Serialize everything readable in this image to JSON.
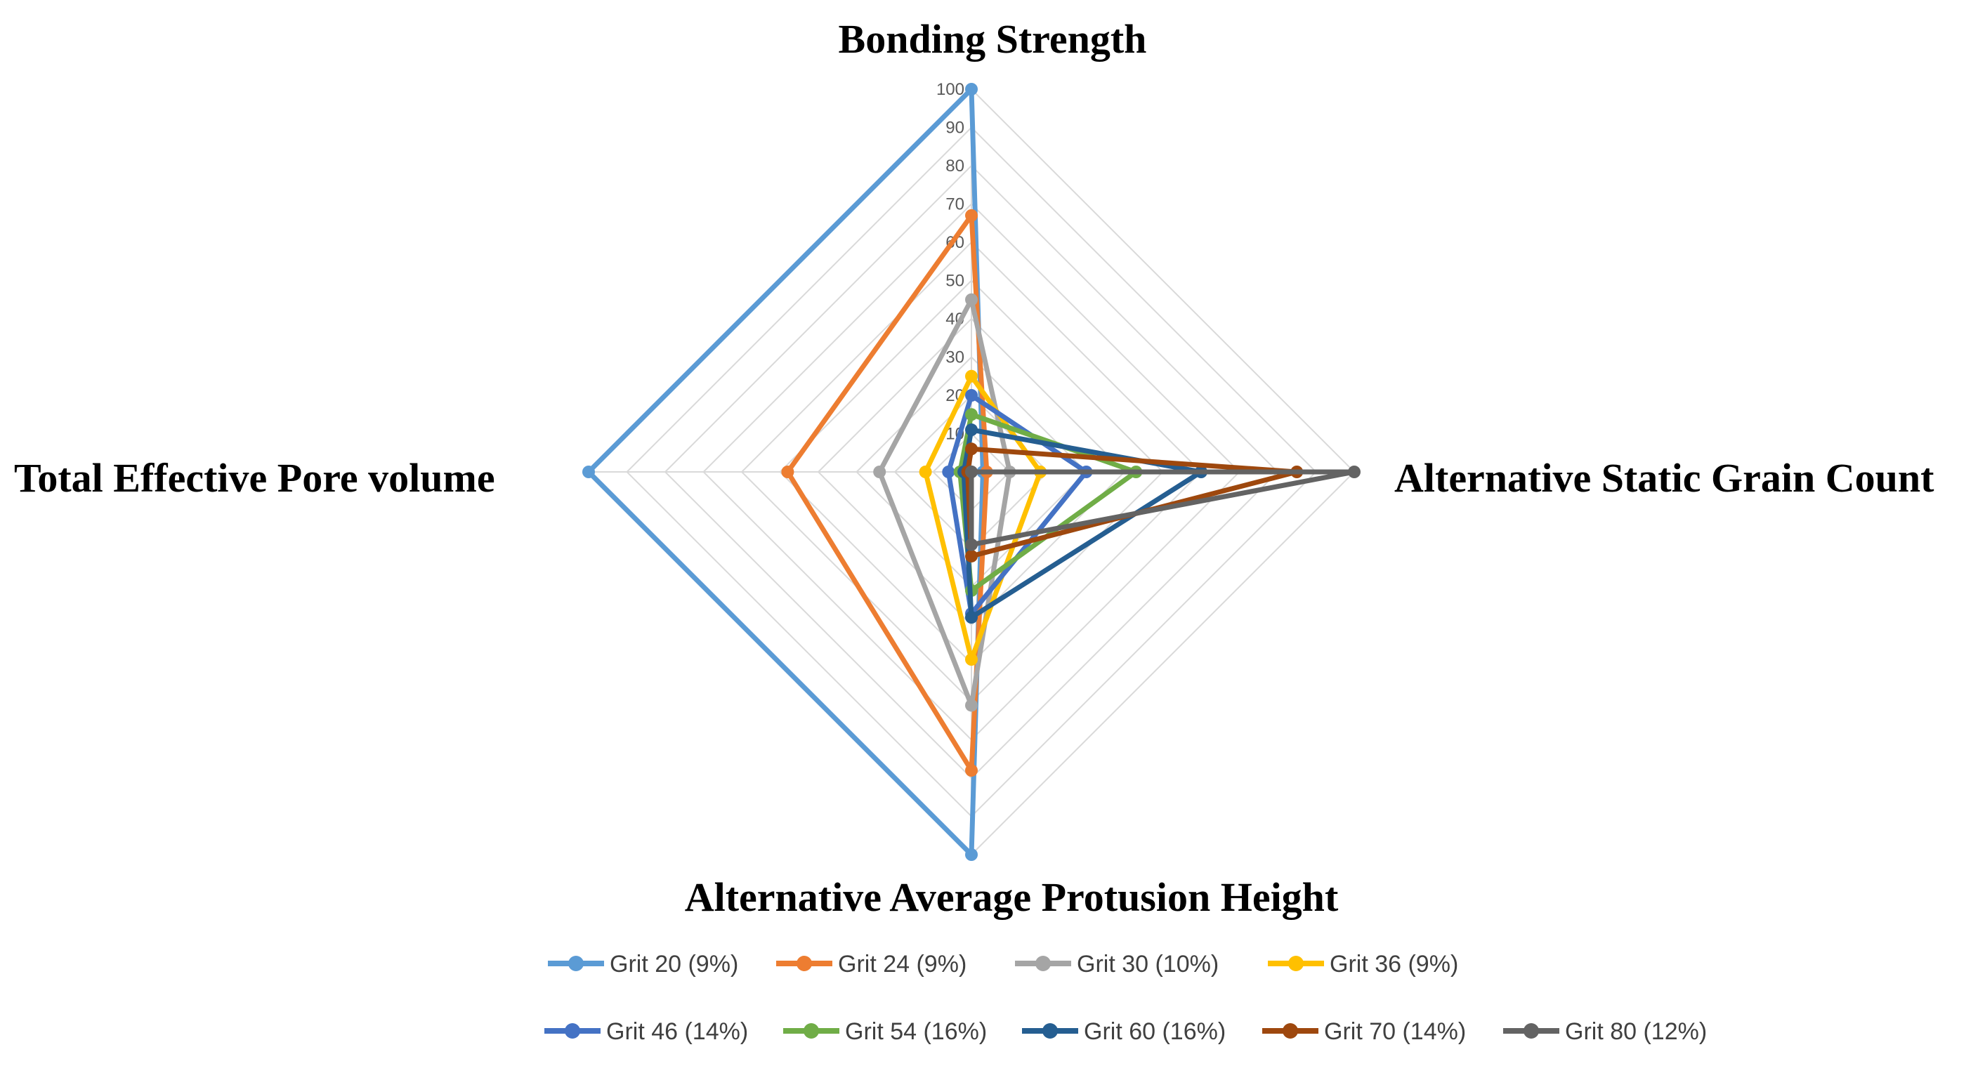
{
  "chart_data": {
    "type": "radar",
    "axes": [
      "Bonding Strength",
      "Alternative Static Grain Count",
      "Alternative Average Protusion Height",
      "Total Effective Pore volume"
    ],
    "ticks": [
      "0",
      "10",
      "20",
      "30",
      "40",
      "50",
      "60",
      "70",
      "80",
      "90",
      "100"
    ],
    "range": [
      0,
      100
    ],
    "legend_position": "bottom",
    "series": [
      {
        "name": "Grit 20 (9%)",
        "color": "#5B9BD5",
        "values": [
          100,
          3,
          100,
          100
        ]
      },
      {
        "name": "Grit 24  (9%)",
        "color": "#ED7D31",
        "values": [
          67,
          4,
          78,
          48
        ]
      },
      {
        "name": "Grit 30  (10%)",
        "color": "#A5A5A5",
        "values": [
          45,
          10,
          61,
          24
        ]
      },
      {
        "name": "Grit 36 (9%)",
        "color": "#FFC000",
        "values": [
          25,
          18,
          49,
          12
        ]
      },
      {
        "name": "Grit 46 (14%)",
        "color": "#4472C4",
        "values": [
          20,
          30,
          37,
          6
        ]
      },
      {
        "name": "Grit 54 (16%)",
        "color": "#70AD47",
        "values": [
          15,
          43,
          31,
          3
        ]
      },
      {
        "name": "Grit 60 (16%)",
        "color": "#255E91",
        "values": [
          11,
          60,
          38,
          2
        ]
      },
      {
        "name": "Grit 70 (14%)",
        "color": "#9E480E",
        "values": [
          6,
          85,
          22,
          1
        ]
      },
      {
        "name": "Grit 80 (12%)",
        "color": "#636363",
        "values": [
          0,
          100,
          19,
          0
        ]
      }
    ]
  }
}
